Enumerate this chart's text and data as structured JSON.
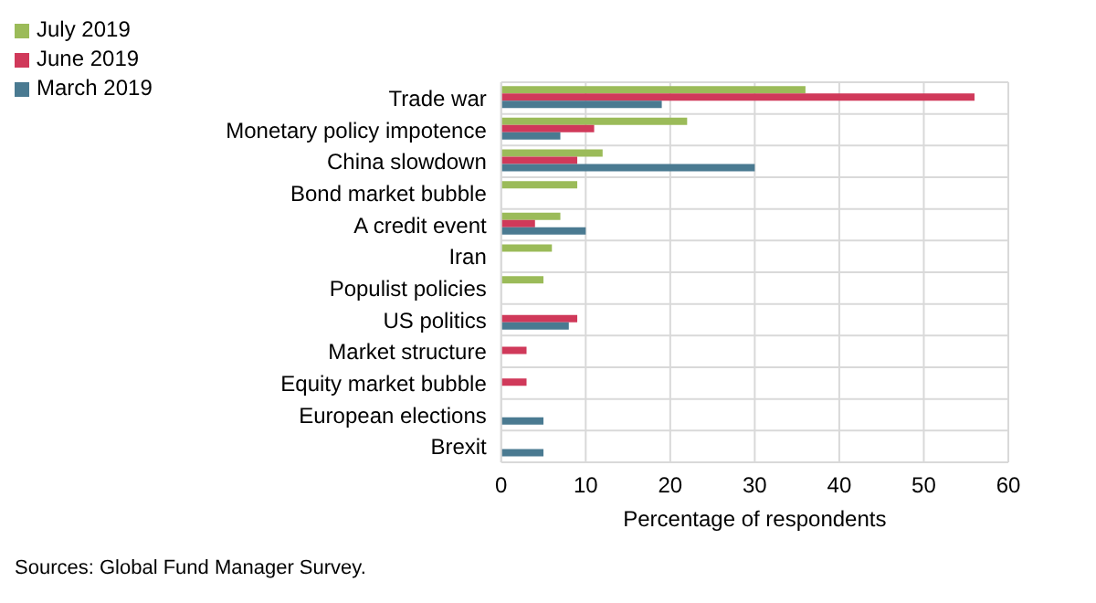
{
  "chart_data": {
    "type": "bar",
    "orientation": "horizontal",
    "xlabel": "Percentage of respondents",
    "categories": [
      "Trade war",
      "Monetary policy impotence",
      "China slowdown",
      "Bond market bubble",
      "A credit event",
      "Iran",
      "Populist policies",
      "US politics",
      "Market structure",
      "Equity market bubble",
      "European elections",
      "Brexit"
    ],
    "series": [
      {
        "name": "July 2019",
        "color": "#9bbb59",
        "values": [
          36,
          22,
          12,
          9,
          7,
          6,
          5,
          null,
          null,
          null,
          null,
          null
        ]
      },
      {
        "name": "June 2019",
        "color": "#d0395a",
        "values": [
          56,
          11,
          9,
          null,
          4,
          null,
          null,
          9,
          3,
          3,
          null,
          null
        ]
      },
      {
        "name": "March 2019",
        "color": "#4a7a91",
        "values": [
          19,
          7,
          30,
          null,
          10,
          null,
          null,
          8,
          null,
          null,
          5,
          5
        ]
      }
    ],
    "xlim": [
      0,
      60
    ],
    "xticks": [
      0,
      10,
      20,
      30,
      40,
      50,
      60
    ],
    "grid": true,
    "legend": "top left",
    "annotations": [
      "Sources: Global Fund Manager Survey."
    ]
  }
}
